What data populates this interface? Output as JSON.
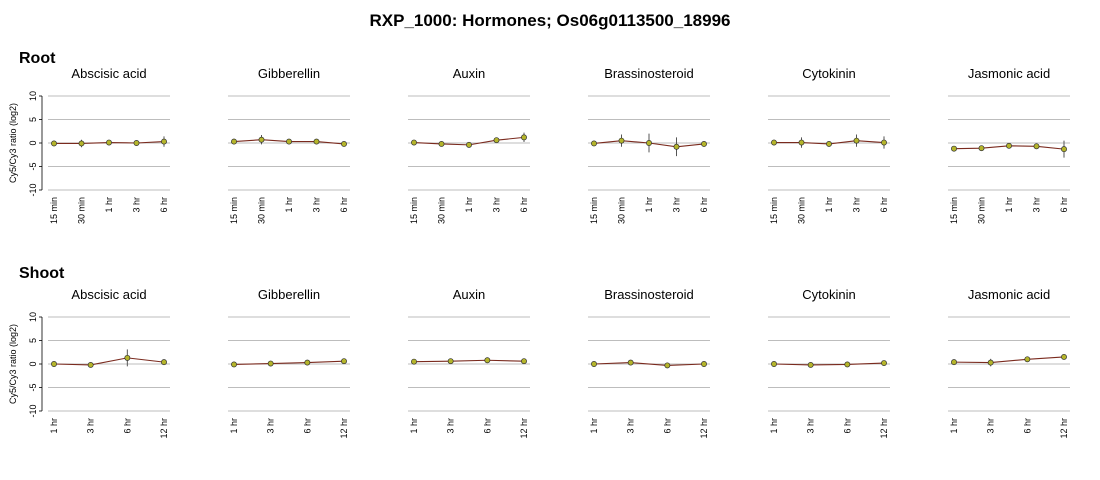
{
  "figure": {
    "title": "RXP_1000: Hormones; Os06g0113500_18996",
    "ylabel": "Cy5/Cy3 ratio (log2)"
  },
  "chart_data": [
    {
      "section": "Root",
      "type": "line",
      "ylim": [
        -10,
        10
      ],
      "yticks": [
        10,
        5,
        0,
        -5,
        -10
      ],
      "grid": true,
      "x": [
        "15 min",
        "30 min",
        "1 hr",
        "3 hr",
        "6 hr"
      ],
      "panels": [
        {
          "title": "Abscisic acid",
          "values": [
            -0.1,
            -0.1,
            0.1,
            0.0,
            0.3
          ],
          "errors": [
            0.6,
            0.8,
            0.2,
            0.2,
            1.1
          ]
        },
        {
          "title": "Gibberellin",
          "values": [
            0.3,
            0.7,
            0.3,
            0.3,
            -0.2
          ],
          "errors": [
            0.6,
            1.0,
            0.2,
            0.2,
            0.4
          ]
        },
        {
          "title": "Auxin",
          "values": [
            0.1,
            -0.2,
            -0.4,
            0.6,
            1.2
          ],
          "errors": [
            0.2,
            0.2,
            0.2,
            0.2,
            1.0
          ]
        },
        {
          "title": "Brassinosteroid",
          "values": [
            -0.1,
            0.5,
            0.0,
            -0.8,
            -0.2
          ],
          "errors": [
            0.3,
            1.3,
            2.0,
            2.0,
            0.6
          ]
        },
        {
          "title": "Cytokinin",
          "values": [
            0.1,
            0.1,
            -0.2,
            0.5,
            0.1
          ],
          "errors": [
            0.6,
            1.1,
            0.6,
            1.3,
            1.3
          ]
        },
        {
          "title": "Jasmonic acid",
          "values": [
            -1.2,
            -1.1,
            -0.6,
            -0.7,
            -1.3
          ],
          "errors": [
            0.2,
            0.3,
            0.3,
            0.2,
            1.8
          ]
        }
      ]
    },
    {
      "section": "Shoot",
      "type": "line",
      "ylim": [
        -10,
        10
      ],
      "yticks": [
        10,
        5,
        0,
        -5,
        -10
      ],
      "grid": true,
      "x": [
        "1 hr",
        "3 hr",
        "6 hr",
        "12 hr"
      ],
      "panels": [
        {
          "title": "Abscisic acid",
          "values": [
            0.0,
            -0.2,
            1.3,
            0.4
          ],
          "errors": [
            0.1,
            0.2,
            1.8,
            0.3
          ]
        },
        {
          "title": "Gibberellin",
          "values": [
            -0.1,
            0.1,
            0.3,
            0.6
          ],
          "errors": [
            0.1,
            0.1,
            0.2,
            0.2
          ]
        },
        {
          "title": "Auxin",
          "values": [
            0.5,
            0.6,
            0.8,
            0.6
          ],
          "errors": [
            0.2,
            0.2,
            0.2,
            0.2
          ]
        },
        {
          "title": "Brassinosteroid",
          "values": [
            0.0,
            0.3,
            -0.3,
            0.0
          ],
          "errors": [
            0.1,
            0.4,
            0.2,
            0.1
          ]
        },
        {
          "title": "Cytokinin",
          "values": [
            0.0,
            -0.2,
            -0.1,
            0.2
          ],
          "errors": [
            0.1,
            0.1,
            0.1,
            0.1
          ]
        },
        {
          "title": "Jasmonic acid",
          "values": [
            0.4,
            0.3,
            1.0,
            1.5
          ],
          "errors": [
            0.2,
            0.8,
            0.3,
            0.3
          ]
        }
      ]
    }
  ],
  "colors": {
    "grid": "#bdbdbd",
    "line": "#7a2a1e",
    "error": "#555555",
    "marker_fill": "#b5b52a",
    "marker_stroke": "#333333"
  }
}
